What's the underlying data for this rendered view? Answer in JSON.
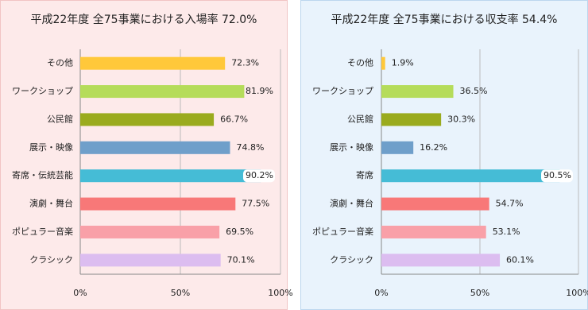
{
  "chart_data": [
    {
      "type": "bar",
      "horizontal": true,
      "title": "平成22年度 全75事業における入場率 72.0%",
      "categories": [
        "その他",
        "ワークショップ",
        "公民館",
        "展示・映像",
        "寄席・伝統芸能",
        "演劇・舞台",
        "ポピュラー音楽",
        "クラシック"
      ],
      "values": [
        72.3,
        81.9,
        66.7,
        74.8,
        90.2,
        77.5,
        69.5,
        70.1
      ],
      "value_labels": [
        "72.3%",
        "81.9%",
        "66.7%",
        "74.8%",
        "90.2%",
        "77.5%",
        "69.5%",
        "70.1%"
      ],
      "colors": [
        "#ffc83a",
        "#b5dc5a",
        "#9aab1e",
        "#6f9fca",
        "#45bcd6",
        "#f87878",
        "#f9a0a8",
        "#dcbdf0"
      ],
      "xlim": [
        0,
        100
      ],
      "xticks": [
        {
          "value": 0,
          "label": "0%"
        },
        {
          "value": 50,
          "label": "50%"
        },
        {
          "value": 100,
          "label": "100%"
        }
      ],
      "grid": true
    },
    {
      "type": "bar",
      "horizontal": true,
      "title": "平成22年度 全75事業における収支率 54.4%",
      "categories": [
        "その他",
        "ワークショップ",
        "公民館",
        "展示・映像",
        "寄席",
        "演劇・舞台",
        "ポピュラー音楽",
        "クラシック"
      ],
      "values": [
        1.9,
        36.5,
        30.3,
        16.2,
        90.5,
        54.7,
        53.1,
        60.1
      ],
      "value_labels": [
        "1.9%",
        "36.5%",
        "30.3%",
        "16.2%",
        "90.5%",
        "54.7%",
        "53.1%",
        "60.1%"
      ],
      "colors": [
        "#ffc83a",
        "#b5dc5a",
        "#9aab1e",
        "#6f9fca",
        "#45bcd6",
        "#f87878",
        "#f9a0a8",
        "#dcbdf0"
      ],
      "xlim": [
        0,
        100
      ],
      "xticks": [
        {
          "value": 0,
          "label": "0%"
        },
        {
          "value": 50,
          "label": "50%"
        },
        {
          "value": 100,
          "label": "100%"
        }
      ],
      "grid": true
    }
  ]
}
